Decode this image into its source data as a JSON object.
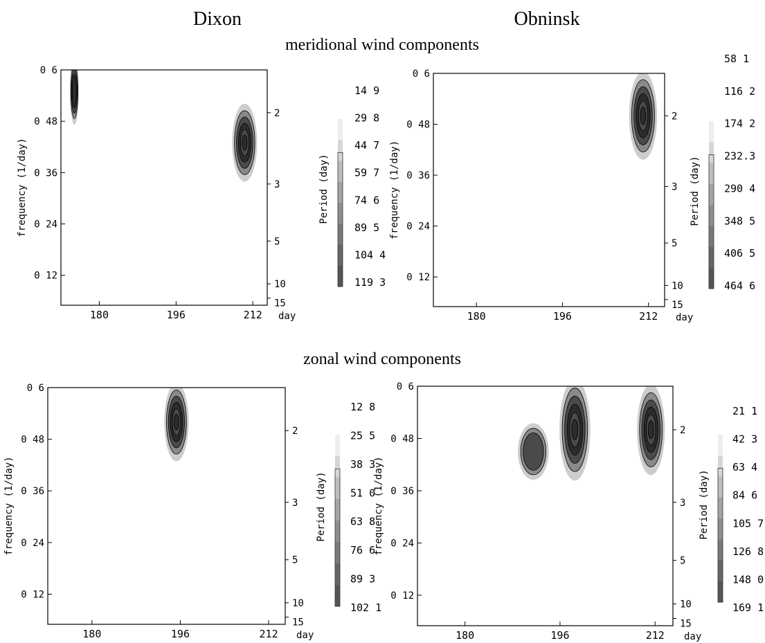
{
  "header": {
    "left_station": "Dixon",
    "right_station": "Obninsk",
    "row_titles": [
      "meridional wind components",
      "zonal wind components"
    ]
  },
  "axis_text": {
    "ylabel": "frequency (1/day)",
    "period_label": "Period (day)",
    "xunit": "day"
  },
  "colors": {
    "light": "#c8c8c8",
    "mid": "#8a8a8a",
    "dark": "#4a4a4a",
    "darker": "#2c2c2c",
    "line": "#000000"
  },
  "chart_data": [
    {
      "type": "heatmap",
      "station": "Dixon",
      "component": "meridional wind components",
      "xlim": [
        172,
        215
      ],
      "ylim": [
        0.05,
        0.6
      ],
      "xticks": [
        "180",
        "196",
        "212"
      ],
      "yticks": [
        "0 6",
        "0 48",
        "0 36",
        "0 24",
        "0 12"
      ],
      "period_ticks": [
        "2",
        "3",
        "5",
        "10",
        "15"
      ],
      "colorbar": [
        "14 9",
        "29 8",
        "44 7",
        "59 7",
        "74 6",
        "89 5",
        "104 4",
        "119 3"
      ],
      "blobs": [
        {
          "x": 174.8,
          "y": 0.55,
          "rx": 0.7,
          "ry": 0.06,
          "peak": 70.0
        },
        {
          "x": 210.3,
          "y": 0.43,
          "rx": 2.0,
          "ry": 0.07,
          "peak": 119.3
        }
      ]
    },
    {
      "type": "heatmap",
      "station": "Obninsk",
      "component": "meridional wind components",
      "xlim": [
        172,
        215
      ],
      "ylim": [
        0.05,
        0.6
      ],
      "xticks": [
        "180",
        "196",
        "212"
      ],
      "yticks": [
        "0 6",
        "0 48",
        "0 36",
        "0 24",
        "0 12"
      ],
      "period_ticks": [
        "2",
        "3",
        "5",
        "10",
        "15"
      ],
      "colorbar": [
        "58 1",
        "116 2",
        "174 2",
        "232.3",
        "290 4",
        "348 5",
        "406 5",
        "464 6"
      ],
      "blobs": [
        {
          "x": 211.0,
          "y": 0.5,
          "rx": 2.0,
          "ry": 0.08,
          "peak": 464.6
        }
      ]
    },
    {
      "type": "heatmap",
      "station": "Dixon",
      "component": "zonal wind components",
      "xlim": [
        172,
        215
      ],
      "ylim": [
        0.05,
        0.6
      ],
      "xticks": [
        "180",
        "196",
        "212"
      ],
      "yticks": [
        "0 6",
        "0 48",
        "0 36",
        "0 24",
        "0 12"
      ],
      "period_ticks": [
        "2",
        "3",
        "5",
        "10",
        "15"
      ],
      "colorbar": [
        "12 8",
        "25 5",
        "38 3",
        "51 0",
        "63 8",
        "76 6",
        "89 3",
        "102 1"
      ],
      "blobs": [
        {
          "x": 195.3,
          "y": 0.52,
          "rx": 1.7,
          "ry": 0.07,
          "peak": 102.1
        }
      ]
    },
    {
      "type": "heatmap",
      "station": "Obninsk",
      "component": "zonal wind components",
      "xlim": [
        172,
        215
      ],
      "ylim": [
        0.05,
        0.6
      ],
      "xticks": [
        "180",
        "196",
        "212"
      ],
      "yticks": [
        "0 6",
        "0 48",
        "0 36",
        "0 24",
        "0 12"
      ],
      "period_ticks": [
        "2",
        "3",
        "5",
        "10",
        "15"
      ],
      "colorbar": [
        "21 1",
        "42 3",
        "63 4",
        "84 6",
        "105 7",
        "126 8",
        "148 0",
        "169 1"
      ],
      "blobs": [
        {
          "x": 191.5,
          "y": 0.45,
          "rx": 2.0,
          "ry": 0.05,
          "peak": 90.0
        },
        {
          "x": 198.5,
          "y": 0.5,
          "rx": 2.0,
          "ry": 0.09,
          "peak": 169.1
        },
        {
          "x": 211.3,
          "y": 0.5,
          "rx": 1.8,
          "ry": 0.08,
          "peak": 169.1
        }
      ]
    }
  ]
}
